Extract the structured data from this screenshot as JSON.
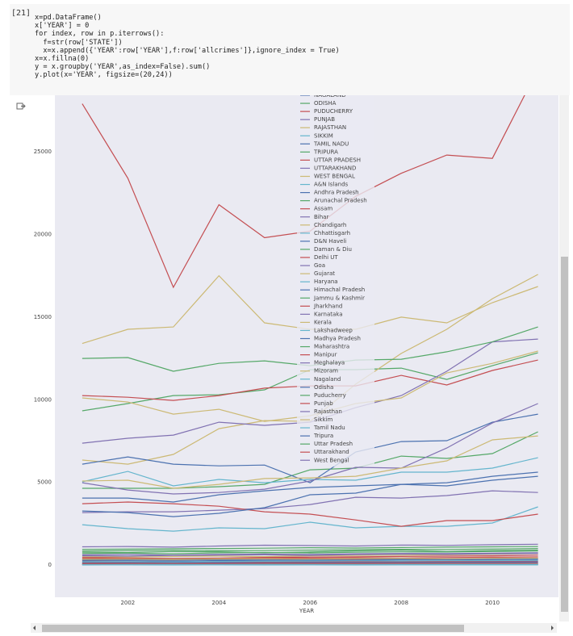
{
  "cell": {
    "prompt": "[21]",
    "code": [
      "x=pd.DataFrame()",
      "x['YEAR'] = 0",
      "for index, row in p.iterrows():",
      "  f=str(row['STATE'])",
      "  x=x.append({'YEAR':row['YEAR'],f:row['allcrimes']},ignore_index = True)",
      "x=x.fillna(0)",
      "y = x.groupby('YEAR',as_index=False).sum()",
      "y.plot(x='YEAR', figsize=(20,24))"
    ]
  },
  "chart_data": {
    "type": "line",
    "xlabel": "YEAR",
    "x": [
      2001,
      2002,
      2003,
      2004,
      2005,
      2006,
      2007,
      2008,
      2009,
      2010,
      2011
    ],
    "xlim": [
      2000.4,
      2011.45
    ],
    "xticks": [
      2002,
      2004,
      2006,
      2008,
      2010
    ],
    "ylim": [
      -1950,
      28420
    ],
    "yticks": [
      0,
      5000,
      10000,
      15000,
      20000,
      25000
    ],
    "grid": true,
    "legend": "upper center",
    "series": [
      {
        "name": "NAGALAND",
        "color": "#4c72b0",
        "values": [
          40,
          45,
          50,
          48,
          52,
          55,
          50,
          48,
          52,
          55,
          60
        ]
      },
      {
        "name": "ODISHA",
        "color": "#55a868",
        "values": [
          9330,
          9770,
          10250,
          10300,
          10600,
          11820,
          11820,
          11910,
          11230,
          12060,
          12840
        ]
      },
      {
        "name": "PUDUCHERRY",
        "color": "#c44e52",
        "values": [
          300,
          320,
          310,
          330,
          340,
          320,
          330,
          350,
          340,
          360,
          370
        ]
      },
      {
        "name": "PUNJAB",
        "color": "#8172b2",
        "values": [
          3170,
          3220,
          3220,
          3320,
          3420,
          3660,
          4100,
          4050,
          4200,
          4490,
          4390
        ]
      },
      {
        "name": "RAJASTHAN",
        "color": "#ccb974",
        "values": [
          6350,
          6100,
          6690,
          8250,
          8740,
          8690,
          10940,
          12800,
          14260,
          16110,
          17580
        ]
      },
      {
        "name": "SIKKIM",
        "color": "#64b5cd",
        "values": [
          20,
          22,
          25,
          24,
          26,
          25,
          28,
          27,
          30,
          29,
          31
        ]
      },
      {
        "name": "TAMIL NADU",
        "color": "#4c72b0",
        "values": [
          4050,
          4050,
          3810,
          4250,
          4490,
          4690,
          4790,
          4880,
          4790,
          5130,
          5370
        ]
      },
      {
        "name": "TRIPURA",
        "color": "#55a868",
        "values": [
          4640,
          4640,
          4640,
          4740,
          4880,
          5760,
          5860,
          6590,
          6450,
          6740,
          8060
        ]
      },
      {
        "name": "UTTAR PRADESH",
        "color": "#c44e52",
        "values": [
          27900,
          23400,
          16800,
          21800,
          19800,
          20200,
          22300,
          23700,
          24800,
          24600,
          30000
        ]
      },
      {
        "name": "UTTARAKHAND",
        "color": "#8172b2",
        "values": [
          1100,
          1120,
          1080,
          1150,
          1200,
          1180,
          1150,
          1210,
          1190,
          1230,
          1260
        ]
      },
      {
        "name": "WEST BENGAL",
        "color": "#ccb974",
        "values": [
          13400,
          14260,
          14400,
          17500,
          14650,
          14260,
          14260,
          15000,
          14650,
          15870,
          16850
        ]
      },
      {
        "name": "A&N Islands",
        "color": "#64b5cd",
        "values": [
          60,
          55,
          65,
          58,
          62,
          60,
          64,
          61,
          66,
          63,
          68
        ]
      },
      {
        "name": "Andhra Pradesh",
        "color": "#4c72b0",
        "values": [
          6100,
          6540,
          6100,
          6000,
          6050,
          4980,
          6840,
          7470,
          7520,
          8640,
          9130
        ]
      },
      {
        "name": "Arunachal Pradesh",
        "color": "#55a868",
        "values": [
          780,
          760,
          820,
          800,
          740,
          790,
          860,
          900,
          820,
          880,
          900
        ]
      },
      {
        "name": "Assam",
        "color": "#c44e52",
        "values": [
          10250,
          10150,
          9960,
          10250,
          10700,
          10840,
          10840,
          11470,
          10890,
          11770,
          12400
        ]
      },
      {
        "name": "Bihar",
        "color": "#8172b2",
        "values": [
          7370,
          7670,
          7860,
          8640,
          8450,
          8640,
          9520,
          10250,
          11720,
          13500,
          13670
        ]
      },
      {
        "name": "Chandigarh",
        "color": "#ccb974",
        "values": [
          500,
          480,
          520,
          540,
          510,
          560,
          580,
          600,
          620,
          650,
          700
        ]
      },
      {
        "name": "Chhattisgarh",
        "color": "#64b5cd",
        "values": [
          5030,
          5660,
          4790,
          5180,
          4980,
          5180,
          5130,
          5620,
          5620,
          5860,
          6490
        ]
      },
      {
        "name": "D&N Haveli",
        "color": "#4c72b0",
        "values": [
          30,
          28,
          32,
          35,
          30,
          33,
          36,
          34,
          38,
          37,
          40
        ]
      },
      {
        "name": "Daman & Diu",
        "color": "#55a868",
        "values": [
          15,
          18,
          16,
          20,
          17,
          19,
          22,
          21,
          23,
          20,
          24
        ]
      },
      {
        "name": "Delhi UT",
        "color": "#c44e52",
        "values": [
          450,
          430,
          400,
          420,
          460,
          480,
          500,
          520,
          540,
          560,
          600
        ]
      },
      {
        "name": "Goa",
        "color": "#8172b2",
        "values": [
          150,
          160,
          140,
          170,
          165,
          180,
          175,
          190,
          185,
          200,
          210
        ]
      },
      {
        "name": "Gujarat",
        "color": "#ccb974",
        "values": [
          10110,
          9860,
          9130,
          9420,
          8690,
          9030,
          9770,
          10110,
          11620,
          12200,
          12940
        ]
      },
      {
        "name": "Haryana",
        "color": "#64b5cd",
        "values": [
          2440,
          2200,
          2050,
          2250,
          2200,
          2590,
          2250,
          2340,
          2340,
          2540,
          3520
        ]
      },
      {
        "name": "Himachal Pradesh",
        "color": "#4c72b0",
        "values": [
          320,
          330,
          310,
          340,
          350,
          360,
          370,
          350,
          380,
          390,
          400
        ]
      },
      {
        "name": "Jammu & Kashmir",
        "color": "#55a868",
        "values": [
          850,
          880,
          900,
          860,
          870,
          900,
          920,
          950,
          940,
          970,
          1000
        ]
      },
      {
        "name": "Jharkhand",
        "color": "#c44e52",
        "values": [
          3710,
          3810,
          3710,
          3560,
          3220,
          3080,
          2730,
          2340,
          2690,
          2690,
          3080
        ]
      },
      {
        "name": "Karnataka",
        "color": "#8172b2",
        "values": [
          4980,
          4540,
          4300,
          4390,
          4590,
          5080,
          5910,
          5860,
          7080,
          8590,
          9770
        ]
      },
      {
        "name": "Kerala",
        "color": "#ccb974",
        "values": [
          5080,
          5130,
          4640,
          4880,
          5230,
          5270,
          5370,
          5860,
          6300,
          7570,
          7810
        ]
      },
      {
        "name": "Lakshadweep",
        "color": "#64b5cd",
        "values": [
          5,
          6,
          4,
          7,
          5,
          6,
          5,
          8,
          6,
          7,
          6
        ]
      },
      {
        "name": "Madhya Pradesh",
        "color": "#4c72b0",
        "values": [
          3270,
          3170,
          2930,
          3130,
          3470,
          4250,
          4350,
          4880,
          4980,
          5370,
          5620
        ]
      },
      {
        "name": "Maharashtra",
        "color": "#55a868",
        "values": [
          12500,
          12550,
          11720,
          12200,
          12350,
          12060,
          12400,
          12450,
          12900,
          13500,
          14400
        ]
      },
      {
        "name": "Manipur",
        "color": "#c44e52",
        "values": [
          180,
          170,
          190,
          200,
          185,
          210,
          220,
          205,
          230,
          240,
          250
        ]
      },
      {
        "name": "Meghalaya",
        "color": "#8172b2",
        "values": [
          100,
          110,
          105,
          120,
          115,
          130,
          125,
          140,
          135,
          150,
          160
        ]
      },
      {
        "name": "Mizoram",
        "color": "#ccb974",
        "values": [
          60,
          65,
          70,
          68,
          72,
          75,
          70,
          78,
          80,
          82,
          85
        ]
      },
      {
        "name": "Nagaland",
        "color": "#64b5cd",
        "values": [
          45,
          40,
          50,
          48,
          42,
          46,
          50,
          52,
          49,
          54,
          56
        ]
      },
      {
        "name": "Odisha",
        "color": "#4c72b0",
        "values": [
          250,
          260,
          240,
          270,
          280,
          300,
          290,
          310,
          320,
          330,
          340
        ]
      },
      {
        "name": "Puducherry",
        "color": "#55a868",
        "values": [
          700,
          720,
          680,
          740,
          760,
          730,
          780,
          800,
          790,
          820,
          850
        ]
      },
      {
        "name": "Punjab",
        "color": "#c44e52",
        "values": [
          400,
          380,
          360,
          390,
          410,
          420,
          440,
          430,
          450,
          470,
          490
        ]
      },
      {
        "name": "Rajasthan",
        "color": "#8172b2",
        "values": [
          620,
          640,
          600,
          650,
          660,
          640,
          680,
          700,
          690,
          720,
          740
        ]
      },
      {
        "name": "Sikkim",
        "color": "#ccb974",
        "values": [
          350,
          360,
          340,
          370,
          380,
          360,
          390,
          400,
          380,
          410,
          420
        ]
      },
      {
        "name": "Tamil Nadu",
        "color": "#64b5cd",
        "values": [
          200,
          210,
          190,
          220,
          230,
          240,
          250,
          245,
          260,
          270,
          280
        ]
      },
      {
        "name": "Tripura",
        "color": "#4c72b0",
        "values": [
          120,
          130,
          125,
          140,
          135,
          150,
          145,
          160,
          155,
          170,
          175
        ]
      },
      {
        "name": "Uttar Pradesh",
        "color": "#55a868",
        "values": [
          950,
          970,
          990,
          1000,
          1020,
          1050,
          1030,
          1060,
          1080,
          1100,
          1120
        ]
      },
      {
        "name": "Uttarakhand",
        "color": "#c44e52",
        "values": [
          80,
          85,
          90,
          88,
          92,
          95,
          98,
          100,
          105,
          108,
          110
        ]
      },
      {
        "name": "West Bengal",
        "color": "#8172b2",
        "values": [
          560,
          540,
          580,
          600,
          620,
          590,
          640,
          660,
          650,
          680,
          700
        ]
      }
    ]
  }
}
